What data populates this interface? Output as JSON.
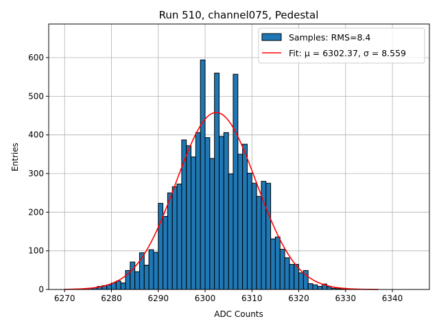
{
  "chart_data": {
    "type": "bar",
    "title": "Run 510, channel075, Pedestal",
    "xlabel": "ADC Counts",
    "ylabel": "Entries",
    "xlim": [
      6266.6,
      6347.9
    ],
    "ylim": [
      0,
      687
    ],
    "grid": true,
    "legend_placement": "top-right",
    "xticks": [
      6270,
      6280,
      6290,
      6300,
      6310,
      6320,
      6330,
      6340
    ],
    "yticks": [
      0,
      100,
      200,
      300,
      400,
      500,
      600
    ],
    "bin_width": 1,
    "bins_start": [
      6272,
      6273,
      6274,
      6275,
      6276,
      6277,
      6278,
      6279,
      6280,
      6281,
      6282,
      6283,
      6284,
      6285,
      6286,
      6287,
      6288,
      6289,
      6290,
      6291,
      6292,
      6293,
      6294,
      6295,
      6296,
      6297,
      6298,
      6299,
      6300,
      6301,
      6302,
      6303,
      6304,
      6305,
      6306,
      6307,
      6308,
      6309,
      6310,
      6311,
      6312,
      6313,
      6314,
      6315,
      6316,
      6317,
      6318,
      6319,
      6320,
      6321,
      6322,
      6323,
      6324,
      6325,
      6326,
      6327,
      6328,
      6329,
      6330
    ],
    "values": [
      1,
      1,
      2,
      3,
      4,
      8,
      10,
      12,
      17,
      22,
      17,
      49,
      71,
      46,
      95,
      63,
      103,
      96,
      223,
      189,
      250,
      266,
      273,
      387,
      372,
      343,
      406,
      594,
      393,
      339,
      560,
      396,
      406,
      299,
      557,
      350,
      376,
      301,
      275,
      241,
      280,
      275,
      131,
      136,
      104,
      82,
      65,
      65,
      43,
      49,
      15,
      12,
      8,
      14,
      7,
      3,
      2,
      1,
      1
    ],
    "bar_color": "#1f77b4",
    "fit": {
      "mu": 6302.37,
      "sigma": 8.559,
      "amplitude": 458,
      "range": [
        6270,
        6337
      ],
      "color": "#ff0000"
    },
    "legend": [
      {
        "label": "Samples: RMS=8.4",
        "kind": "patch",
        "color": "#1f77b4"
      },
      {
        "label": "Fit: μ = 6302.37, σ = 8.559",
        "kind": "line",
        "color": "#ff0000"
      }
    ]
  }
}
